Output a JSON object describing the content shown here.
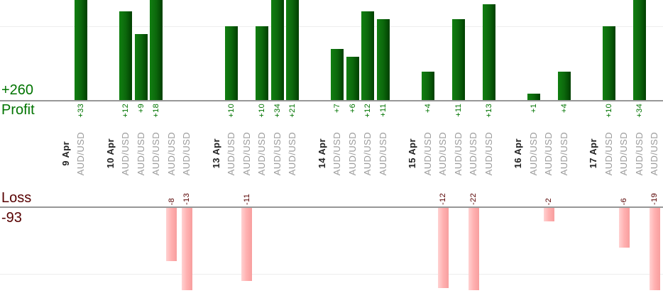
{
  "chart_data": {
    "type": "bar",
    "description": "Daily per-trade profit and loss columns grouped by date",
    "profit": {
      "label": "Profit",
      "total": "+260"
    },
    "loss": {
      "label": "Loss",
      "total": "-93"
    },
    "gridlines": {
      "profit_value": 10,
      "loss_value": -10
    },
    "profit_visible_range": [
      0,
      13.5
    ],
    "loss_visible_range": [
      -12.3,
      0
    ],
    "groups": [
      {
        "date": "9 Apr",
        "trades": [
          {
            "symbol": "AUD/USD",
            "value": 33,
            "label": "+33"
          }
        ]
      },
      {
        "date": "10 Apr",
        "trades": [
          {
            "symbol": "AUD/USD",
            "value": 12,
            "label": "+12"
          },
          {
            "symbol": "AUD/USD",
            "value": 9,
            "label": "+9"
          },
          {
            "symbol": "AUD/USD",
            "value": 18,
            "label": "+18"
          },
          {
            "symbol": "AUD/USD",
            "value": -8,
            "label": "-8"
          },
          {
            "symbol": "AUD/USD",
            "value": -13,
            "label": "-13"
          }
        ]
      },
      {
        "date": "13 Apr",
        "trades": [
          {
            "symbol": "AUD/USD",
            "value": 10,
            "label": "+10"
          },
          {
            "symbol": "AUD/USD",
            "value": -11,
            "label": "-11"
          },
          {
            "symbol": "AUD/USD",
            "value": 10,
            "label": "+10"
          },
          {
            "symbol": "AUD/USD",
            "value": 34,
            "label": "+34"
          },
          {
            "symbol": "AUD/USD",
            "value": 21,
            "label": "+21"
          }
        ]
      },
      {
        "date": "14 Apr",
        "trades": [
          {
            "symbol": "AUD/USD",
            "value": 7,
            "label": "+7"
          },
          {
            "symbol": "AUD/USD",
            "value": 6,
            "label": "+6"
          },
          {
            "symbol": "AUD/USD",
            "value": 12,
            "label": "+12"
          },
          {
            "symbol": "AUD/USD",
            "value": 11,
            "label": "+11"
          }
        ]
      },
      {
        "date": "15 Apr",
        "trades": [
          {
            "symbol": "AUD/USD",
            "value": 4,
            "label": "+4"
          },
          {
            "symbol": "AUD/USD",
            "value": -12,
            "label": "-12"
          },
          {
            "symbol": "AUD/USD",
            "value": 11,
            "label": "+11"
          },
          {
            "symbol": "AUD/USD",
            "value": -22,
            "label": "-22"
          },
          {
            "symbol": "AUD/USD",
            "value": 13,
            "label": "+13"
          }
        ]
      },
      {
        "date": "16 Apr",
        "trades": [
          {
            "symbol": "AUD/USD",
            "value": 1,
            "label": "+1"
          },
          {
            "symbol": "AUD/USD",
            "value": -2,
            "label": "-2"
          },
          {
            "symbol": "AUD/USD",
            "value": 4,
            "label": "+4"
          }
        ]
      },
      {
        "date": "17 Apr",
        "trades": [
          {
            "symbol": "AUD/USD",
            "value": 10,
            "label": "+10"
          },
          {
            "symbol": "AUD/USD",
            "value": -6,
            "label": "-6"
          },
          {
            "symbol": "AUD/USD",
            "value": 34,
            "label": "+34"
          },
          {
            "symbol": "AUD/USD",
            "value": -19,
            "label": "-19"
          }
        ]
      }
    ],
    "colors": {
      "profit_text": "#007400",
      "loss_text": "#570000",
      "date_text": "#222222",
      "symbol_text": "#9b9b9b",
      "axis_line": "#979797",
      "gridline": "#ededed",
      "profit_bar_gradient": [
        "#117f11",
        "#0c680c",
        "#013f01"
      ],
      "loss_bar_gradient": [
        "#ffd2d2",
        "#ffb0b0",
        "#f79e9e"
      ]
    }
  }
}
